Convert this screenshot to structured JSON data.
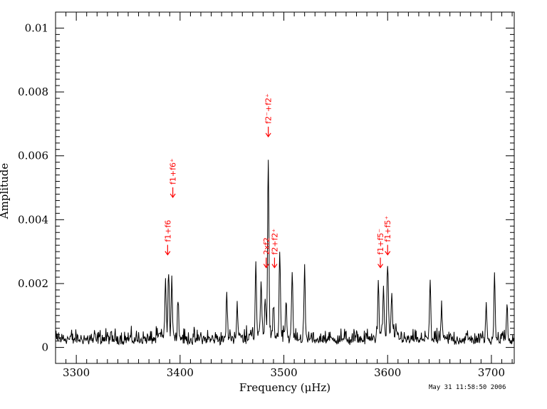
{
  "chart_data": {
    "type": "line",
    "xlabel": "Frequency (μHz)",
    "ylabel": "Amplitude",
    "xlim": [
      3280,
      3722
    ],
    "ylim": [
      -0.0005,
      0.0105
    ],
    "xticks": [
      3300,
      3400,
      3500,
      3600,
      3700
    ],
    "yticks": [
      0,
      0.002,
      0.004,
      0.006,
      0.008,
      0.01
    ],
    "xtick_labels": [
      "3300",
      "3400",
      "3500",
      "3600",
      "3700"
    ],
    "ytick_labels": [
      "0",
      "0.002",
      "0.004",
      "0.006",
      "0.008",
      "0.01"
    ],
    "grid": false,
    "noise_level": 0.00045,
    "peaks": [
      {
        "x": 3386,
        "y": 0.0016
      },
      {
        "x": 3389,
        "y": 0.0021
      },
      {
        "x": 3392,
        "y": 0.0018
      },
      {
        "x": 3398,
        "y": 0.0013
      },
      {
        "x": 3445,
        "y": 0.0016
      },
      {
        "x": 3455,
        "y": 0.0011
      },
      {
        "x": 3473,
        "y": 0.0023
      },
      {
        "x": 3478,
        "y": 0.0017
      },
      {
        "x": 3482,
        "y": 0.0013
      },
      {
        "x": 3485,
        "y": 0.0058
      },
      {
        "x": 3490,
        "y": 0.0012
      },
      {
        "x": 3496,
        "y": 0.0026
      },
      {
        "x": 3502,
        "y": 0.0012
      },
      {
        "x": 3508,
        "y": 0.0021
      },
      {
        "x": 3520,
        "y": 0.0024
      },
      {
        "x": 3591,
        "y": 0.0019
      },
      {
        "x": 3596,
        "y": 0.0016
      },
      {
        "x": 3600,
        "y": 0.0023
      },
      {
        "x": 3604,
        "y": 0.0015
      },
      {
        "x": 3641,
        "y": 0.002
      },
      {
        "x": 3652,
        "y": 0.0012
      },
      {
        "x": 3695,
        "y": 0.0013
      },
      {
        "x": 3703,
        "y": 0.0023
      },
      {
        "x": 3715,
        "y": 0.0013
      }
    ],
    "annotations": [
      {
        "text": "f1+f6",
        "x": 3388,
        "y": 0.0029
      },
      {
        "text": "f1+f6⁺",
        "x": 3393,
        "y": 0.0047
      },
      {
        "text": "f2⁻+f2⁺",
        "x": 3485,
        "y": 0.0066
      },
      {
        "text": "2xf2",
        "x": 3483,
        "y": 0.0025
      },
      {
        "text": "f2+f2⁺",
        "x": 3491,
        "y": 0.0025
      },
      {
        "text": "f1+f5⁻",
        "x": 3593,
        "y": 0.0025
      },
      {
        "text": "f1+f5⁺",
        "x": 3600,
        "y": 0.0029
      }
    ],
    "annotation_color": "#ff0000",
    "line_color": "#000000"
  },
  "stamp": "May 31 11:58:50 2006"
}
